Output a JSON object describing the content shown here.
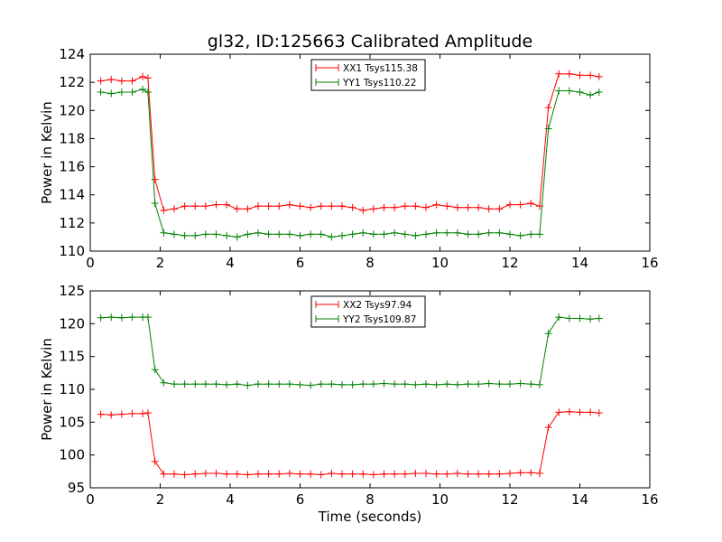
{
  "chart_data": [
    {
      "type": "line",
      "title": "gl32, ID:125663 Calibrated Amplitude",
      "xlabel": "",
      "ylabel": "Power in Kelvin",
      "xlim": [
        0,
        16
      ],
      "ylim": [
        110,
        124
      ],
      "xticks": [
        0,
        2,
        4,
        6,
        8,
        10,
        12,
        14,
        16
      ],
      "yticks": [
        110,
        112,
        114,
        116,
        118,
        120,
        122,
        124
      ],
      "legend_position": "top-center",
      "x": [
        0.3,
        0.6,
        0.9,
        1.2,
        1.5,
        1.65,
        1.85,
        2.1,
        2.4,
        2.7,
        3.0,
        3.3,
        3.6,
        3.9,
        4.2,
        4.5,
        4.8,
        5.1,
        5.4,
        5.7,
        6.0,
        6.3,
        6.6,
        6.9,
        7.2,
        7.5,
        7.8,
        8.1,
        8.4,
        8.7,
        9.0,
        9.3,
        9.6,
        9.9,
        10.2,
        10.5,
        10.8,
        11.1,
        11.4,
        11.7,
        12.0,
        12.3,
        12.6,
        12.85,
        13.1,
        13.4,
        13.7,
        14.0,
        14.3,
        14.55
      ],
      "series": [
        {
          "name": "XX1 Tsys115.38",
          "color": "#ff0000",
          "values": [
            122.1,
            122.2,
            122.1,
            122.1,
            122.4,
            122.3,
            115.1,
            112.9,
            113.0,
            113.2,
            113.2,
            113.2,
            113.3,
            113.3,
            113.0,
            113.0,
            113.2,
            113.2,
            113.2,
            113.3,
            113.2,
            113.1,
            113.2,
            113.2,
            113.2,
            113.1,
            112.9,
            113.0,
            113.1,
            113.1,
            113.2,
            113.2,
            113.1,
            113.3,
            113.2,
            113.1,
            113.1,
            113.1,
            113.0,
            113.0,
            113.3,
            113.3,
            113.4,
            113.2,
            120.2,
            122.6,
            122.6,
            122.5,
            122.5,
            122.4
          ]
        },
        {
          "name": "YY1 Tsys110.22",
          "color": "#008000",
          "values": [
            121.3,
            121.2,
            121.3,
            121.3,
            121.5,
            121.3,
            113.4,
            111.3,
            111.2,
            111.1,
            111.1,
            111.2,
            111.2,
            111.1,
            111.0,
            111.2,
            111.3,
            111.2,
            111.2,
            111.2,
            111.1,
            111.2,
            111.2,
            111.0,
            111.1,
            111.2,
            111.3,
            111.2,
            111.2,
            111.3,
            111.2,
            111.1,
            111.2,
            111.3,
            111.3,
            111.3,
            111.2,
            111.2,
            111.3,
            111.3,
            111.2,
            111.1,
            111.2,
            111.2,
            118.7,
            121.4,
            121.4,
            121.3,
            121.1,
            121.3
          ]
        }
      ]
    },
    {
      "type": "line",
      "title": "",
      "xlabel": "Time (seconds)",
      "ylabel": "Power in Kelvin",
      "xlim": [
        0,
        16
      ],
      "ylim": [
        95,
        125
      ],
      "xticks": [
        0,
        2,
        4,
        6,
        8,
        10,
        12,
        14,
        16
      ],
      "yticks": [
        95,
        100,
        105,
        110,
        115,
        120,
        125
      ],
      "legend_position": "top-center",
      "x": [
        0.3,
        0.6,
        0.9,
        1.2,
        1.5,
        1.65,
        1.85,
        2.1,
        2.4,
        2.7,
        3.0,
        3.3,
        3.6,
        3.9,
        4.2,
        4.5,
        4.8,
        5.1,
        5.4,
        5.7,
        6.0,
        6.3,
        6.6,
        6.9,
        7.2,
        7.5,
        7.8,
        8.1,
        8.4,
        8.7,
        9.0,
        9.3,
        9.6,
        9.9,
        10.2,
        10.5,
        10.8,
        11.1,
        11.4,
        11.7,
        12.0,
        12.3,
        12.6,
        12.85,
        13.1,
        13.4,
        13.7,
        14.0,
        14.3,
        14.55
      ],
      "series": [
        {
          "name": "XX2 Tsys97.94",
          "color": "#ff0000",
          "values": [
            106.2,
            106.1,
            106.2,
            106.3,
            106.3,
            106.4,
            99.0,
            97.1,
            97.1,
            97.0,
            97.1,
            97.2,
            97.2,
            97.1,
            97.1,
            97.0,
            97.1,
            97.1,
            97.1,
            97.2,
            97.1,
            97.1,
            97.0,
            97.2,
            97.1,
            97.1,
            97.1,
            97.0,
            97.1,
            97.1,
            97.1,
            97.2,
            97.2,
            97.1,
            97.1,
            97.2,
            97.1,
            97.1,
            97.1,
            97.1,
            97.2,
            97.3,
            97.3,
            97.2,
            104.2,
            106.5,
            106.6,
            106.5,
            106.5,
            106.4
          ]
        },
        {
          "name": "YY2 Tsys109.87",
          "color": "#008000",
          "values": [
            120.9,
            121.0,
            120.9,
            121.0,
            121.0,
            121.0,
            113.0,
            111.0,
            110.8,
            110.8,
            110.8,
            110.8,
            110.8,
            110.7,
            110.8,
            110.6,
            110.8,
            110.8,
            110.8,
            110.8,
            110.7,
            110.6,
            110.8,
            110.8,
            110.7,
            110.7,
            110.8,
            110.8,
            110.9,
            110.8,
            110.8,
            110.7,
            110.8,
            110.7,
            110.8,
            110.7,
            110.8,
            110.8,
            110.9,
            110.8,
            110.8,
            110.9,
            110.8,
            110.7,
            118.5,
            121.0,
            120.8,
            120.8,
            120.7,
            120.8
          ]
        }
      ]
    }
  ]
}
